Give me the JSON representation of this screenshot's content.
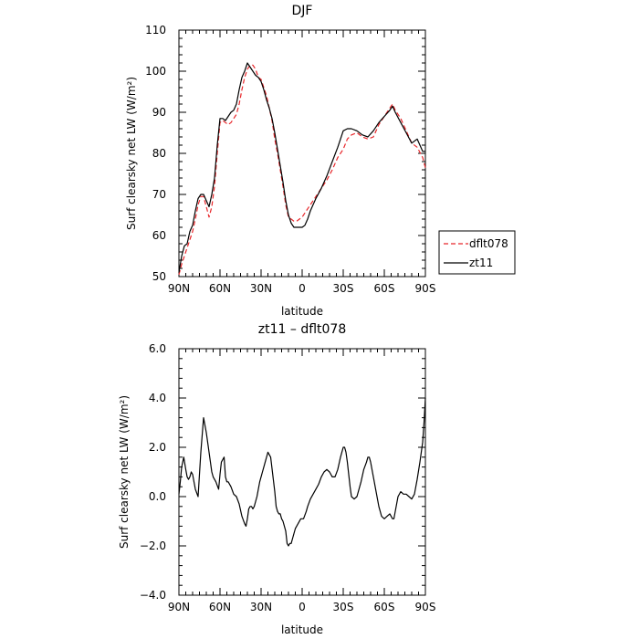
{
  "chart_data": [
    {
      "type": "line",
      "title": "DJF",
      "xlabel": "latitude",
      "ylabel": "Surf clearsky net LW (W/m²)",
      "xlim": [
        90,
        -90
      ],
      "ylim": [
        50,
        110
      ],
      "xticks": [
        {
          "value": 90,
          "label": "90N"
        },
        {
          "value": 60,
          "label": "60N"
        },
        {
          "value": 30,
          "label": "30N"
        },
        {
          "value": 0,
          "label": "0"
        },
        {
          "value": -30,
          "label": "30S"
        },
        {
          "value": -60,
          "label": "60S"
        },
        {
          "value": -90,
          "label": "90S"
        }
      ],
      "yticks": [
        {
          "value": 50,
          "label": "50"
        },
        {
          "value": 60,
          "label": "60"
        },
        {
          "value": 70,
          "label": "70"
        },
        {
          "value": 80,
          "label": "80"
        },
        {
          "value": 90,
          "label": "90"
        },
        {
          "value": 100,
          "label": "100"
        },
        {
          "value": 110,
          "label": "110"
        }
      ],
      "legend_position": "outside-right",
      "series": [
        {
          "name": "dflt078",
          "color": "#e8262a",
          "dash": "dashed",
          "x": [
            90,
            88,
            86,
            84,
            82,
            80,
            78,
            76,
            74,
            72,
            70,
            68,
            66,
            64,
            62,
            60,
            58,
            56,
            54,
            52,
            50,
            48,
            46,
            44,
            42,
            40,
            38,
            36,
            34,
            32,
            30,
            28,
            26,
            24,
            22,
            20,
            18,
            16,
            14,
            12,
            10,
            8,
            6,
            4,
            2,
            0,
            -2,
            -4,
            -6,
            -8,
            -10,
            -14,
            -18,
            -22,
            -26,
            -30,
            -33,
            -36,
            -40,
            -44,
            -48,
            -52,
            -56,
            -60,
            -64,
            -66,
            -68,
            -72,
            -76,
            -80,
            -84,
            -88,
            -90
          ],
          "y": [
            50.5,
            53,
            55,
            57,
            59,
            61,
            64,
            67.5,
            69.5,
            69.5,
            67,
            64.5,
            67,
            72,
            80,
            87.5,
            88,
            87.5,
            87,
            87.5,
            88.5,
            89.5,
            92,
            95.5,
            98.5,
            100.5,
            101.5,
            101.5,
            100.5,
            98.5,
            98,
            96,
            94,
            91,
            88,
            83.5,
            80,
            76,
            72,
            67.5,
            64.5,
            64,
            63.5,
            63.5,
            64,
            64.5,
            65.5,
            66.5,
            67.5,
            68.5,
            69.5,
            71.5,
            73.5,
            76,
            79,
            81,
            83.5,
            84.5,
            85,
            84,
            83.5,
            84,
            87,
            89,
            91,
            92,
            90.5,
            88.5,
            85.5,
            82.5,
            81.5,
            79,
            76.5
          ]
        },
        {
          "name": "zt11",
          "color": "#000000",
          "dash": "solid",
          "x": [
            90,
            88,
            86,
            84,
            82,
            80,
            78,
            76,
            74,
            72,
            70,
            68,
            66,
            64,
            62,
            60,
            58,
            56,
            54,
            52,
            50,
            48,
            46,
            44,
            42,
            40,
            38,
            36,
            34,
            32,
            30,
            28,
            26,
            24,
            22,
            20,
            18,
            16,
            14,
            12,
            10,
            8,
            6,
            4,
            2,
            0,
            -2,
            -4,
            -6,
            -8,
            -10,
            -14,
            -18,
            -22,
            -26,
            -30,
            -33,
            -36,
            -40,
            -44,
            -48,
            -52,
            -56,
            -60,
            -64,
            -66,
            -68,
            -72,
            -76,
            -80,
            -84,
            -88,
            -90
          ],
          "y": [
            51,
            55,
            57.5,
            58,
            61,
            62.5,
            66,
            69,
            70,
            70,
            68.5,
            67,
            70,
            74,
            82,
            88.5,
            88.5,
            88,
            89,
            90,
            90.5,
            92,
            95.5,
            98.5,
            100,
            102,
            101,
            100,
            99,
            98.5,
            97.5,
            95.5,
            93,
            91,
            88.5,
            85,
            81,
            77,
            73,
            68.5,
            65,
            63,
            62,
            62,
            62,
            62,
            62.5,
            64,
            66,
            67.5,
            69,
            71.5,
            74.5,
            78,
            81.5,
            85.5,
            86,
            86,
            85.5,
            84.5,
            84,
            85.5,
            87.5,
            89,
            90.5,
            91.5,
            90,
            87.5,
            85,
            82.5,
            83.5,
            80.5,
            80.5
          ]
        }
      ]
    },
    {
      "type": "line",
      "title": "zt11 – dflt078",
      "xlabel": "latitude",
      "ylabel": "Surf clearsky net LW (W/m²)",
      "xlim": [
        90,
        -90
      ],
      "ylim": [
        -4,
        6
      ],
      "xticks": [
        {
          "value": 90,
          "label": "90N"
        },
        {
          "value": 60,
          "label": "60N"
        },
        {
          "value": 30,
          "label": "30N"
        },
        {
          "value": 0,
          "label": "0"
        },
        {
          "value": -30,
          "label": "30S"
        },
        {
          "value": -60,
          "label": "60S"
        },
        {
          "value": -90,
          "label": "90S"
        }
      ],
      "yticks": [
        {
          "value": -4,
          "label": "−4.0"
        },
        {
          "value": -2,
          "label": "−2.0"
        },
        {
          "value": 0,
          "label": "0.0"
        },
        {
          "value": 2,
          "label": "2.0"
        },
        {
          "value": 4,
          "label": "4.0"
        },
        {
          "value": 6,
          "label": "6.0"
        }
      ],
      "series": [
        {
          "name": "",
          "color": "#000000",
          "dash": "solid",
          "x": [
            90,
            89,
            88,
            86.5,
            85,
            84,
            83,
            82,
            81,
            80,
            79,
            78,
            76,
            74,
            72,
            70,
            69,
            68,
            67,
            66,
            65,
            63,
            61,
            60,
            59,
            57,
            56,
            55,
            54,
            52,
            50,
            48,
            46,
            44,
            42,
            41,
            40,
            39,
            38,
            37,
            36,
            35,
            34,
            33,
            31,
            29,
            27,
            25,
            23,
            20,
            19,
            18,
            17,
            16,
            15,
            14,
            12,
            11,
            10,
            9,
            8,
            7,
            6,
            5,
            3,
            1,
            -1,
            -3,
            -4,
            -6,
            -8,
            -10,
            -12,
            -14,
            -16,
            -18,
            -20,
            -22,
            -24,
            -26,
            -28,
            -30,
            -31,
            -32,
            -33,
            -34,
            -35,
            -36,
            -38,
            -40,
            -41,
            -43,
            -45,
            -47,
            -48,
            -49,
            -50,
            -52,
            -54,
            -56,
            -58,
            -60,
            -62,
            -64,
            -66,
            -67,
            -68,
            -70,
            -72,
            -74,
            -76,
            -78,
            -80,
            -82,
            -84,
            -86,
            -88,
            -89,
            -90
          ],
          "y": [
            0.1,
            0.6,
            1.2,
            1.6,
            1.1,
            0.8,
            0.7,
            0.8,
            1.0,
            0.9,
            0.6,
            0.3,
            0,
            1.8,
            3.2,
            2.6,
            2.2,
            1.8,
            1.4,
            1,
            0.8,
            0.6,
            0.3,
            0.9,
            1.4,
            1.6,
            0.8,
            0.6,
            0.6,
            0.4,
            0.1,
            0,
            -0.3,
            -0.8,
            -1.1,
            -1.2,
            -0.9,
            -0.5,
            -0.4,
            -0.4,
            -0.5,
            -0.4,
            -0.2,
            0,
            0.6,
            1.0,
            1.4,
            1.8,
            1.6,
            0.2,
            -0.4,
            -0.6,
            -0.7,
            -0.7,
            -0.9,
            -1.0,
            -1.4,
            -1.9,
            -2.0,
            -1.9,
            -1.9,
            -1.7,
            -1.5,
            -1.3,
            -1.1,
            -0.9,
            -0.9,
            -0.6,
            -0.4,
            -0.1,
            0.1,
            0.3,
            0.5,
            0.8,
            1.0,
            1.1,
            1.0,
            0.8,
            0.8,
            1.1,
            1.6,
            2.0,
            2.0,
            1.8,
            1.4,
            0.9,
            0.4,
            0,
            -0.1,
            0,
            0.2,
            0.6,
            1.1,
            1.4,
            1.6,
            1.6,
            1.4,
            0.8,
            0.2,
            -0.4,
            -0.8,
            -0.9,
            -0.8,
            -0.7,
            -0.9,
            -0.9,
            -0.6,
            0,
            0.2,
            0.1,
            0.1,
            0,
            -0.1,
            0.1,
            0.7,
            1.4,
            2.2,
            3.0,
            4.0
          ]
        }
      ]
    }
  ]
}
